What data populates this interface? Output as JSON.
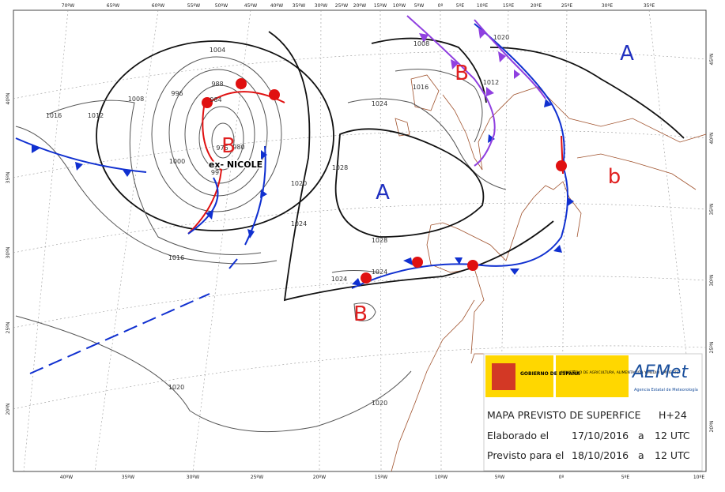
{
  "top_axis": [
    "70ºW",
    "65ºW",
    "60ºW",
    "55ºW",
    "50ºW",
    "45ºW",
    "40ºW",
    "35ºW",
    "30ºW",
    "25ºW",
    "20ºW",
    "15ºW",
    "10ºW",
    "5ºW",
    "0º",
    "5ºE",
    "10ºE",
    "15ºE",
    "20ºE",
    "25ºE",
    "30ºE",
    "35ºE"
  ],
  "bottom_axis": [
    "40ºW",
    "35ºW",
    "30ºW",
    "25ºW",
    "20ºW",
    "15ºW",
    "10ºW",
    "5ºW",
    "0º",
    "5ºE",
    "10ºE"
  ],
  "left_axis": [
    "40ºN",
    "35ºN",
    "30ºN",
    "25ºN",
    "20ºN"
  ],
  "right_axis": [
    "45ºN",
    "40ºN",
    "35ºN",
    "30ºN",
    "25ºN",
    "20ºN"
  ],
  "isobar_labels": [
    "1004",
    "988",
    "984",
    "996",
    "1008",
    "1016",
    "1012",
    "976",
    "980",
    "99",
    "1000",
    "1020",
    "1024",
    "1028",
    "1028",
    "1024",
    "1016",
    "1024",
    "1024",
    "1020",
    "1020",
    "1008",
    "1016",
    "1012",
    "1020"
  ],
  "pressure_centers": [
    "A",
    "B",
    "A",
    "B",
    "b",
    "B"
  ],
  "storm_label": "ex- NICOLE",
  "info_box": {
    "government": "GOBIERNO DE ESPAÑA",
    "ministry": "MINISTERIO DE AGRICULTURA, ALIMENTACIÓN Y MEDIO AMBIENTE",
    "logo": "AEMet",
    "logo_subtitle": "Agencia Estatal de Meteorología",
    "title": "MAPA PREVISTO DE SUPERFICE",
    "lead_time": "H+24",
    "made": {
      "label": "Elaborado el",
      "date": "17/10/2016",
      "separator": "a",
      "time": "12 UTC"
    },
    "valid": {
      "label": "Previsto para el",
      "date": "18/10/2016",
      "separator": "a",
      "time": "12 UTC"
    }
  }
}
